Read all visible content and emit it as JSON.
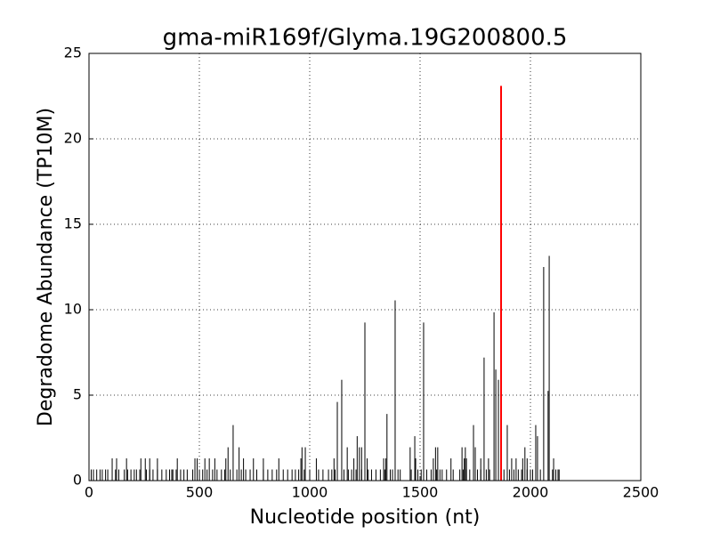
{
  "chart_data": {
    "type": "stem",
    "title": "gma-miR169f/Glyma.19G200800.5",
    "x_label": "Nucleotide position (nt)",
    "y_label": "Degradome Abundance (TP10M)",
    "xlim": [
      0,
      2500
    ],
    "xticks": [
      0,
      500,
      1000,
      1500,
      2000,
      2500
    ],
    "ylim": [
      0,
      25
    ],
    "yticks": [
      0,
      5,
      10,
      15,
      20,
      25
    ],
    "grid": true,
    "series": [
      {
        "color": "#000000",
        "x": [
          653,
          1125,
          1145,
          1250,
          1350,
          1387,
          1516,
          1476,
          1742,
          1790,
          1835,
          1843,
          1855,
          1895,
          2024,
          2032,
          2060,
          2085,
          2080,
          10,
          20,
          35,
          50,
          60,
          75,
          85,
          120,
          135,
          160,
          175,
          190,
          205,
          215,
          230,
          260,
          275,
          290,
          310,
          330,
          350,
          365,
          375,
          380,
          395,
          415,
          430,
          445,
          470,
          500,
          515,
          535,
          560,
          580,
          600,
          615,
          640,
          670,
          690,
          710,
          730,
          760,
          790,
          810,
          830,
          850,
          880,
          900,
          920,
          935,
          950,
          975,
          1000,
          1040,
          1060,
          1085,
          1100,
          1115,
          1155,
          1175,
          1190,
          1210,
          1235,
          1265,
          1280,
          1300,
          1320,
          1340,
          1365,
          1375,
          1400,
          1410,
          1460,
          1490,
          1505,
          1530,
          1550,
          1575,
          1590,
          1600,
          1620,
          1650,
          1680,
          1695,
          1710,
          1725,
          1760,
          1775,
          1800,
          1815,
          1880,
          1905,
          1925,
          1945,
          1960,
          1985,
          2000,
          2010,
          2045,
          2100,
          2115,
          2125,
          2130,
          105,
          125,
          170,
          235,
          255,
          275,
          310,
          400,
          480,
          490,
          525,
          545,
          570,
          620,
          700,
          745,
          790,
          860,
          960,
          1030,
          1110,
          1200,
          1260,
          1335,
          1345,
          1480,
          1560,
          1640,
          1700,
          1710,
          1775,
          1810,
          1915,
          1935,
          1965,
          1985,
          2105,
          630,
          680,
          965,
          980,
          1170,
          1225,
          1235,
          1455,
          1570,
          1580,
          1690,
          1705,
          1750,
          1975,
          1215
        ],
        "values": [
          3.25,
          4.6,
          5.9,
          9.25,
          3.9,
          10.55,
          9.25,
          2.6,
          3.25,
          7.2,
          9.85,
          6.5,
          5.9,
          3.25,
          3.25,
          2.6,
          12.5,
          13.15,
          5.25,
          0.65,
          0.65,
          0.65,
          0.65,
          0.65,
          0.65,
          0.65,
          0.65,
          0.65,
          0.65,
          0.65,
          0.65,
          0.65,
          0.65,
          0.65,
          0.65,
          0.65,
          0.65,
          0.65,
          0.65,
          0.65,
          0.65,
          0.65,
          0.65,
          0.65,
          0.65,
          0.65,
          0.65,
          0.65,
          0.65,
          0.65,
          0.65,
          0.65,
          0.65,
          0.65,
          0.65,
          0.65,
          0.65,
          0.65,
          0.65,
          0.65,
          0.65,
          0.65,
          0.65,
          0.65,
          0.65,
          0.65,
          0.65,
          0.65,
          0.65,
          0.65,
          0.65,
          0.65,
          0.65,
          0.65,
          0.65,
          0.65,
          0.65,
          0.65,
          0.65,
          0.65,
          0.65,
          0.65,
          0.65,
          0.65,
          0.65,
          0.65,
          0.65,
          0.65,
          0.65,
          0.65,
          0.65,
          0.65,
          0.65,
          0.65,
          0.65,
          0.65,
          0.65,
          0.65,
          0.65,
          0.65,
          0.65,
          0.65,
          0.65,
          0.65,
          0.65,
          0.65,
          0.65,
          0.65,
          0.65,
          0.65,
          0.65,
          0.65,
          0.65,
          0.65,
          0.65,
          0.65,
          0.65,
          0.65,
          0.65,
          0.65,
          0.65,
          0.65,
          1.3,
          1.3,
          1.3,
          1.3,
          1.3,
          1.3,
          1.3,
          1.3,
          1.3,
          1.3,
          1.3,
          1.3,
          1.3,
          1.3,
          1.3,
          1.3,
          1.3,
          1.3,
          1.3,
          1.3,
          1.3,
          1.3,
          1.3,
          1.3,
          1.3,
          1.3,
          1.3,
          1.3,
          1.3,
          1.3,
          1.3,
          1.3,
          1.3,
          1.3,
          1.3,
          1.3,
          1.3,
          1.95,
          1.95,
          1.95,
          1.95,
          1.95,
          1.95,
          1.95,
          1.95,
          1.95,
          1.95,
          1.95,
          1.95,
          1.95,
          1.95,
          2.6
        ]
      },
      {
        "color": "#ff0000",
        "x": [
          1867
        ],
        "values": [
          23.1
        ]
      }
    ]
  }
}
